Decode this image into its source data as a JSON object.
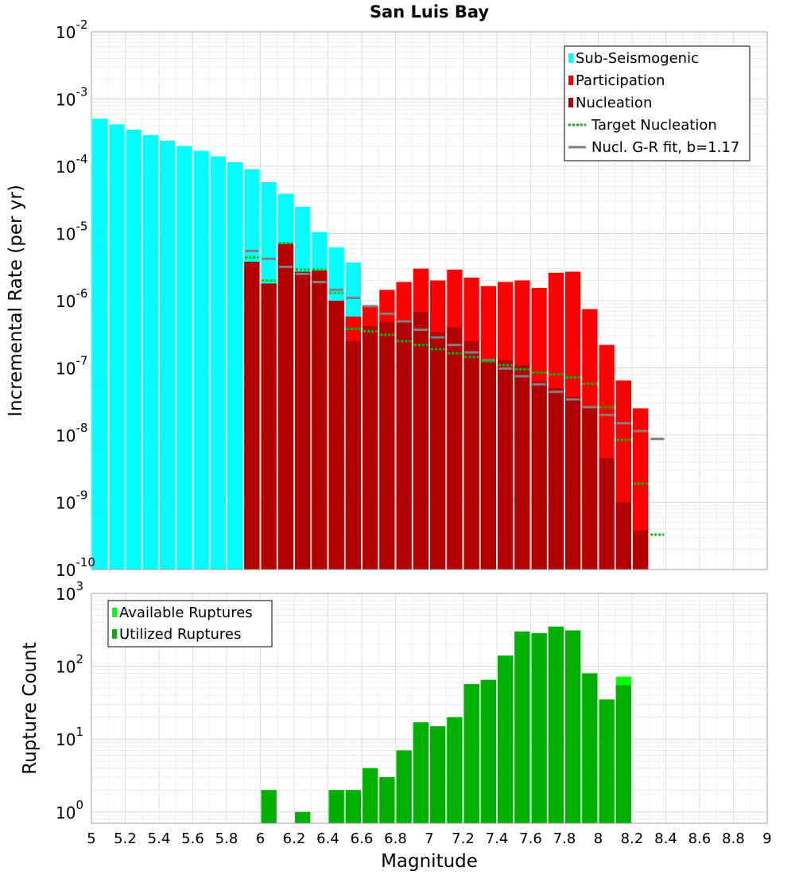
{
  "chart_data": [
    {
      "type": "bar",
      "title": "San Luis Bay",
      "xlabel": "",
      "ylabel": "Incremental Rate (per yr)",
      "xlim": [
        5,
        9
      ],
      "ylim": [
        1e-10,
        0.01
      ],
      "yscale": "log",
      "grid": true,
      "legend_position": "top-right",
      "bin_width": 0.1,
      "ytick_base": "10",
      "ytick_exponents": [
        "-10",
        "-9",
        "-8",
        "-7",
        "-6",
        "-5",
        "-4",
        "-3",
        "-2"
      ],
      "series": [
        {
          "name": "Sub-Seismogenic",
          "kind": "bar",
          "color": "#00ffff",
          "x": [
            5.05,
            5.15,
            5.25,
            5.35,
            5.45,
            5.55,
            5.65,
            5.75,
            5.85,
            5.95,
            6.05,
            6.15,
            6.25,
            6.35,
            6.45,
            6.55
          ],
          "values": [
            0.00051,
            0.00042,
            0.00035,
            0.00029,
            0.00024,
            0.0002,
            0.00017,
            0.00014,
            0.000115,
            9e-05,
            5.8e-05,
            3.9e-05,
            2.5e-05,
            1.05e-05,
            6.2e-06,
            3.7e-06
          ]
        },
        {
          "name": "Participation",
          "kind": "bar",
          "color": "#ff0000",
          "x": [
            5.95,
            6.05,
            6.15,
            6.25,
            6.35,
            6.45,
            6.55,
            6.65,
            6.75,
            6.85,
            6.95,
            7.05,
            7.15,
            7.25,
            7.35,
            7.45,
            7.55,
            7.65,
            7.75,
            7.85,
            7.95,
            8.05,
            8.15,
            8.25
          ],
          "values": [
            3.8e-06,
            1.8e-06,
            7e-06,
            2.7e-06,
            2.8e-06,
            1e-06,
            5.8e-07,
            8.5e-07,
            1.45e-06,
            1.9e-06,
            3e-06,
            2e-06,
            2.9e-06,
            2.2e-06,
            1.65e-06,
            1.9e-06,
            2e-06,
            1.55e-06,
            2.6e-06,
            2.7e-06,
            7.5e-07,
            2.2e-07,
            6.5e-08,
            2.5e-08
          ]
        },
        {
          "name": "Nucleation",
          "kind": "bar",
          "color": "#b30000",
          "x": [
            5.95,
            6.05,
            6.15,
            6.25,
            6.35,
            6.45,
            6.55,
            6.65,
            6.75,
            6.85,
            6.95,
            7.05,
            7.15,
            7.25,
            7.35,
            7.45,
            7.55,
            7.65,
            7.75,
            7.85,
            7.95,
            8.05,
            8.15,
            8.25
          ],
          "values": [
            3.8e-06,
            1.8e-06,
            7e-06,
            2.7e-06,
            2.8e-06,
            1e-06,
            2.5e-07,
            4.2e-07,
            4.8e-07,
            4.8e-07,
            6.8e-07,
            3.4e-07,
            4e-07,
            2.5e-07,
            1.35e-07,
            1.3e-07,
            1.1e-07,
            6.3e-08,
            5e-08,
            3.7e-08,
            2.5e-08,
            4.5e-09,
            1e-09,
            3.8e-10
          ]
        },
        {
          "name": "Target Nucleation",
          "kind": "dotted-step",
          "color": "#00c000",
          "x": [
            5.95,
            6.05,
            6.15,
            6.25,
            6.35,
            6.45,
            6.55,
            6.65,
            6.75,
            6.85,
            6.95,
            7.05,
            7.15,
            7.25,
            7.35,
            7.45,
            7.55,
            7.65,
            7.75,
            7.85,
            7.95,
            8.05,
            8.15,
            8.25,
            8.35
          ],
          "values": [
            4.4e-06,
            2e-06,
            7.2e-06,
            2.9e-06,
            2.9e-06,
            1.3e-06,
            3.8e-07,
            3.5e-07,
            3.1e-07,
            2.5e-07,
            2.2e-07,
            1.9e-07,
            1.65e-07,
            1.45e-07,
            1.25e-07,
            1.1e-07,
            9.5e-08,
            8.5e-08,
            8e-08,
            7.2e-08,
            5.8e-08,
            2.6e-08,
            8.5e-09,
            1.9e-09,
            3.3e-10
          ]
        },
        {
          "name": "Nucl. G-R fit, b=1.17",
          "kind": "solid-step",
          "color": "#808080",
          "x": [
            5.95,
            6.05,
            6.15,
            6.25,
            6.35,
            6.45,
            6.55,
            6.65,
            6.75,
            6.85,
            6.95,
            7.05,
            7.15,
            7.25,
            7.35,
            7.45,
            7.55,
            7.65,
            7.75,
            7.85,
            7.95,
            8.05,
            8.15,
            8.25,
            8.35
          ],
          "values": [
            5.5e-06,
            4.2e-06,
            3.2e-06,
            2.5e-06,
            1.9e-06,
            1.45e-06,
            1.1e-06,
            8.3e-07,
            6.4e-07,
            4.9e-07,
            3.7e-07,
            2.85e-07,
            2.2e-07,
            1.7e-07,
            1.3e-07,
            9.8e-08,
            7.5e-08,
            5.7e-08,
            4.4e-08,
            3.4e-08,
            2.6e-08,
            2e-08,
            1.5e-08,
            1.15e-08,
            8.8e-09
          ]
        }
      ]
    },
    {
      "type": "bar",
      "title": "",
      "xlabel": "Magnitude",
      "ylabel": "Rupture Count",
      "xlim": [
        5,
        9
      ],
      "ylim": [
        0.7,
        1000
      ],
      "yscale": "log",
      "grid": true,
      "legend_position": "top-left",
      "bin_width": 0.1,
      "ytick_base": "10",
      "ytick_exponents": [
        "0",
        "1",
        "2",
        "3"
      ],
      "x_ticks": [
        "5",
        "5.2",
        "5.4",
        "5.6",
        "5.8",
        "6",
        "6.2",
        "6.4",
        "6.6",
        "6.8",
        "7",
        "7.2",
        "7.4",
        "7.6",
        "7.8",
        "8",
        "8.2",
        "8.4",
        "8.6",
        "8.8",
        "9"
      ],
      "series": [
        {
          "name": "Available Ruptures",
          "kind": "bar",
          "color": "#00ff00",
          "x": [
            6.05,
            6.25,
            6.45,
            6.55,
            6.65,
            6.75,
            6.85,
            6.95,
            7.05,
            7.15,
            7.25,
            7.35,
            7.45,
            7.55,
            7.65,
            7.75,
            7.85,
            7.95,
            8.05,
            8.15
          ],
          "values": [
            2,
            1,
            2,
            2,
            4,
            3,
            7,
            17,
            15,
            20,
            57,
            65,
            140,
            300,
            285,
            350,
            310,
            80,
            35,
            72
          ]
        },
        {
          "name": "Utilized Ruptures",
          "kind": "bar",
          "color": "#00b000",
          "x": [
            6.05,
            6.25,
            6.45,
            6.55,
            6.65,
            6.75,
            6.85,
            6.95,
            7.05,
            7.15,
            7.25,
            7.35,
            7.45,
            7.55,
            7.65,
            7.75,
            7.85,
            7.95,
            8.05,
            8.15
          ],
          "values": [
            2,
            1,
            2,
            2,
            4,
            3,
            7,
            17,
            15,
            20,
            57,
            65,
            140,
            300,
            285,
            350,
            310,
            80,
            35,
            55
          ]
        }
      ]
    }
  ]
}
